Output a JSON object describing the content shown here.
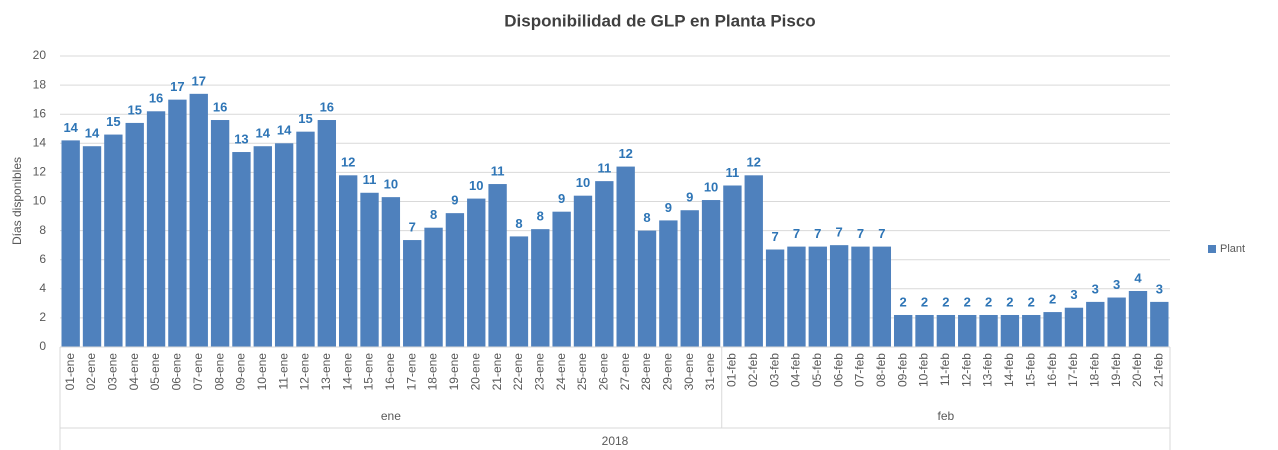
{
  "chart_data": {
    "type": "bar",
    "title": "Disponibilidad de GLP en Planta Pisco",
    "y_label": "Días disponibles",
    "categories": [
      "01-ene",
      "02-ene",
      "03-ene",
      "04-ene",
      "05-ene",
      "06-ene",
      "07-ene",
      "08-ene",
      "09-ene",
      "10-ene",
      "11-ene",
      "12-ene",
      "13-ene",
      "14-ene",
      "15-ene",
      "16-ene",
      "17-ene",
      "18-ene",
      "19-ene",
      "20-ene",
      "21-ene",
      "22-ene",
      "23-ene",
      "24-ene",
      "25-ene",
      "26-ene",
      "27-ene",
      "28-ene",
      "29-ene",
      "30-ene",
      "31-ene",
      "01-feb",
      "02-feb",
      "03-feb",
      "04-feb",
      "05-feb",
      "06-feb",
      "07-feb",
      "08-feb",
      "09-feb",
      "10-feb",
      "11-feb",
      "12-feb",
      "13-feb",
      "14-feb",
      "15-feb",
      "16-feb",
      "17-feb",
      "18-feb",
      "19-feb",
      "20-feb",
      "21-feb"
    ],
    "category_groups": [
      {
        "label": "ene",
        "count": 31
      },
      {
        "label": "feb",
        "count": 21
      }
    ],
    "super_group": "2018",
    "series": [
      {
        "name": "Plant",
        "color": "#4f81bd",
        "values": [
          14.2,
          13.8,
          14.6,
          15.4,
          16.2,
          17.0,
          17.4,
          15.6,
          13.4,
          13.8,
          14.0,
          14.8,
          15.6,
          11.8,
          10.6,
          10.3,
          7.35,
          8.2,
          9.2,
          10.2,
          11.2,
          7.6,
          8.1,
          9.3,
          10.4,
          11.4,
          12.4,
          8.0,
          8.7,
          9.4,
          10.1,
          11.1,
          11.8,
          6.7,
          6.9,
          6.9,
          7.0,
          6.9,
          6.9,
          2.2,
          2.2,
          2.2,
          2.2,
          2.2,
          2.2,
          2.2,
          2.4,
          2.7,
          3.1,
          3.4,
          3.85,
          3.1
        ],
        "value_labels": [
          "14",
          "14",
          "15",
          "15",
          "16",
          "17",
          "17",
          "16",
          "13",
          "14",
          "14",
          "15",
          "16",
          "12",
          "11",
          "10",
          "7",
          "8",
          "9",
          "10",
          "11",
          "8",
          "8",
          "9",
          "10",
          "11",
          "12",
          "8",
          "9",
          "9",
          "10",
          "11",
          "12",
          "7",
          "7",
          "7",
          "7",
          "7",
          "7",
          "2",
          "2",
          "2",
          "2",
          "2",
          "2",
          "2",
          "2",
          "3",
          "3",
          "3",
          "4",
          "3"
        ]
      }
    ],
    "label_color": "#2e75b6",
    "ylim": [
      0,
      20
    ],
    "yticks": [
      0,
      2,
      4,
      6,
      8,
      10,
      12,
      14,
      16,
      18,
      20
    ],
    "grid": true,
    "legend": "right"
  }
}
